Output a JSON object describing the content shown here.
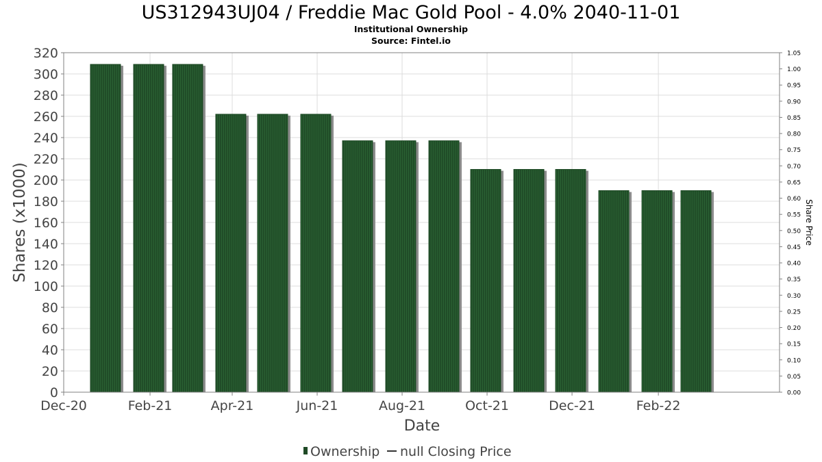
{
  "chart_data": {
    "type": "bar",
    "title": "US312943UJ04 / Freddie Mac Gold Pool - 4.0% 2040-11-01",
    "subtitle_lines": [
      "Institutional Ownership",
      "Source: Fintel.io"
    ],
    "xlabel": "Date",
    "ylabel": "Shares (x1000)",
    "y2label": "Share Price",
    "ylim": [
      0,
      320
    ],
    "y_ticks": [
      0,
      20,
      40,
      60,
      80,
      100,
      120,
      140,
      160,
      180,
      200,
      220,
      240,
      260,
      280,
      300,
      320
    ],
    "y2lim": [
      0,
      1.05
    ],
    "y2_ticks": [
      "0.00",
      "0.05",
      "0.10",
      "0.15",
      "0.20",
      "0.25",
      "0.30",
      "0.35",
      "0.40",
      "0.45",
      "0.50",
      "0.55",
      "0.60",
      "0.65",
      "0.70",
      "0.75",
      "0.80",
      "0.85",
      "0.90",
      "0.95",
      "1.00",
      "1.05"
    ],
    "xlim": [
      "2020-12-01",
      "2022-04-29"
    ],
    "x_tick_labels": [
      {
        "label": "Dec-20",
        "date": "2020-12-01"
      },
      {
        "label": "Feb-21",
        "date": "2021-02-01"
      },
      {
        "label": "Apr-21",
        "date": "2021-04-01"
      },
      {
        "label": "Jun-21",
        "date": "2021-06-01"
      },
      {
        "label": "Aug-21",
        "date": "2021-08-01"
      },
      {
        "label": "Oct-21",
        "date": "2021-10-01"
      },
      {
        "label": "Dec-21",
        "date": "2021-12-01"
      },
      {
        "label": "Feb-22",
        "date": "2022-02-01"
      }
    ],
    "grid": true,
    "legend_position": "bottom",
    "series": [
      {
        "name": "Ownership",
        "type": "bar",
        "color": "#1f4a26",
        "points": [
          {
            "date": "2020-12-31",
            "value": 309
          },
          {
            "date": "2021-01-31",
            "value": 309
          },
          {
            "date": "2021-02-28",
            "value": 309
          },
          {
            "date": "2021-03-31",
            "value": 262
          },
          {
            "date": "2021-04-30",
            "value": 262
          },
          {
            "date": "2021-05-31",
            "value": 262
          },
          {
            "date": "2021-06-30",
            "value": 237
          },
          {
            "date": "2021-07-31",
            "value": 237
          },
          {
            "date": "2021-08-31",
            "value": 237
          },
          {
            "date": "2021-09-30",
            "value": 210
          },
          {
            "date": "2021-10-31",
            "value": 210
          },
          {
            "date": "2021-11-30",
            "value": 210
          },
          {
            "date": "2021-12-31",
            "value": 190
          },
          {
            "date": "2022-01-31",
            "value": 190
          },
          {
            "date": "2022-02-28",
            "value": 190
          }
        ]
      },
      {
        "name": "null Closing Price",
        "type": "line",
        "color": "#333333",
        "points": []
      }
    ]
  },
  "colors": {
    "bar_fill": "#1f4a26",
    "bar_stripe": "#2e6b38",
    "bar_shadow": "#8c8c8c",
    "grid": "#dcdcdc",
    "axis": "#808080"
  }
}
